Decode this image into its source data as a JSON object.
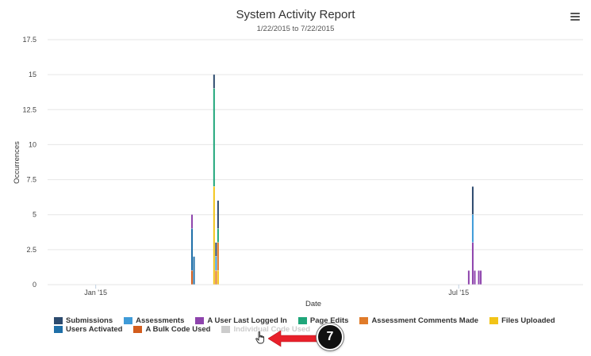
{
  "chart_data": {
    "type": "bar",
    "stacked": true,
    "title": "System Activity Report",
    "subtitle": "1/22/2015 to 7/22/2015",
    "xlabel": "Date",
    "ylabel": "Occurrences",
    "ylim": [
      0,
      17.5
    ],
    "yticks": [
      "0",
      "2.5",
      "5",
      "7.5",
      "10",
      "12.5",
      "15",
      "17.5"
    ],
    "ytick_values": [
      0,
      2.5,
      5,
      7.5,
      10,
      12.5,
      15,
      17.5
    ],
    "xrange": [
      "2014-12-08",
      "2015-09-01"
    ],
    "xticks": [
      {
        "date": "2015-01-01",
        "label": "Jan '15"
      },
      {
        "date": "2015-07-01",
        "label": "Jul '15"
      }
    ],
    "grid": true,
    "legend_position": "bottom",
    "series": [
      {
        "name": "Submissions",
        "color": "#2c4a6e",
        "visible": true
      },
      {
        "name": "Assessments",
        "color": "#3f9bd8",
        "visible": true
      },
      {
        "name": "A User Last Logged In",
        "color": "#8e44ad",
        "visible": true
      },
      {
        "name": "Page Edits",
        "color": "#1fa67a",
        "visible": true
      },
      {
        "name": "Assessment Comments Made",
        "color": "#e07b2a",
        "visible": true
      },
      {
        "name": "Files Uploaded",
        "color": "#f2c417",
        "visible": true
      },
      {
        "name": "Users Activated",
        "color": "#1f6fa8",
        "visible": true
      },
      {
        "name": "A Bulk Code Used",
        "color": "#d35d1d",
        "visible": true
      },
      {
        "name": "Individual Code Used",
        "color": "#cccccc",
        "visible": false
      }
    ],
    "bars": [
      {
        "date": "2015-02-18",
        "stack": [
          {
            "series": "A Bulk Code Used",
            "value": 1
          },
          {
            "series": "Users Activated",
            "value": 3
          },
          {
            "series": "A User Last Logged In",
            "value": 1
          }
        ]
      },
      {
        "date": "2015-02-19",
        "stack": [
          {
            "series": "Users Activated",
            "value": 2
          }
        ]
      },
      {
        "date": "2015-03-01",
        "stack": [
          {
            "series": "Files Uploaded",
            "value": 7
          },
          {
            "series": "Page Edits",
            "value": 7
          },
          {
            "series": "Submissions",
            "value": 1
          }
        ]
      },
      {
        "date": "2015-03-02",
        "stack": [
          {
            "series": "Assessment Comments Made",
            "value": 1
          },
          {
            "series": "Assessments",
            "value": 1
          },
          {
            "series": "Submissions",
            "value": 1
          }
        ]
      },
      {
        "date": "2015-03-03",
        "stack": [
          {
            "series": "Files Uploaded",
            "value": 1
          },
          {
            "series": "Assessment Comments Made",
            "value": 2
          },
          {
            "series": "Page Edits",
            "value": 1
          },
          {
            "series": "Submissions",
            "value": 2
          }
        ]
      },
      {
        "date": "2015-07-06",
        "stack": [
          {
            "series": "A User Last Logged In",
            "value": 1
          }
        ]
      },
      {
        "date": "2015-07-08",
        "stack": [
          {
            "series": "A User Last Logged In",
            "value": 3
          },
          {
            "series": "Assessments",
            "value": 2
          },
          {
            "series": "Submissions",
            "value": 2
          }
        ]
      },
      {
        "date": "2015-07-09",
        "stack": [
          {
            "series": "A User Last Logged In",
            "value": 1
          }
        ]
      },
      {
        "date": "2015-07-11",
        "stack": [
          {
            "series": "A User Last Logged In",
            "value": 1
          }
        ]
      },
      {
        "date": "2015-07-12",
        "stack": [
          {
            "series": "A User Last Logged In",
            "value": 1
          }
        ]
      }
    ]
  },
  "header": {
    "menu_icon": "hamburger-menu-icon"
  },
  "annotation": {
    "step_number": "7",
    "arrow_color": "#e8202a",
    "cursor_icon": "hand-pointer-icon"
  }
}
